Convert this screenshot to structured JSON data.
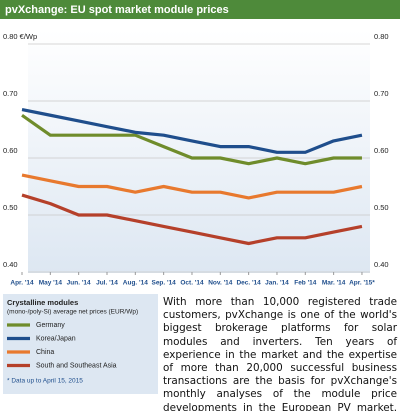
{
  "chart_data": {
    "type": "line",
    "title": "pvXchange: EU spot market module prices",
    "categories": [
      "Apr. '14",
      "May '14",
      "Jun. '14",
      "Jul. '14",
      "Aug. '14",
      "Sep. '14",
      "Oct. '14",
      "Nov. '14",
      "Dec. '14",
      "Jan. '14",
      "Feb '14",
      "Mar. '14",
      "Apr. '15*"
    ],
    "series": [
      {
        "name": "Germany",
        "color": "#6f8c2b",
        "values": [
          0.675,
          0.64,
          0.64,
          0.64,
          0.64,
          0.62,
          0.6,
          0.6,
          0.59,
          0.6,
          0.59,
          0.6,
          0.6
        ]
      },
      {
        "name": "Korea/Japan",
        "color": "#1f4e8c",
        "values": [
          0.685,
          0.675,
          0.665,
          0.655,
          0.645,
          0.64,
          0.63,
          0.62,
          0.62,
          0.61,
          0.61,
          0.63,
          0.64
        ]
      },
      {
        "name": "China",
        "color": "#e8792e",
        "values": [
          0.57,
          0.56,
          0.55,
          0.55,
          0.54,
          0.55,
          0.54,
          0.54,
          0.53,
          0.54,
          0.54,
          0.54,
          0.55
        ]
      },
      {
        "name": "South and Southeast Asia",
        "color": "#b5402a",
        "values": [
          0.535,
          0.52,
          0.5,
          0.5,
          0.49,
          0.48,
          0.47,
          0.46,
          0.45,
          0.46,
          0.46,
          0.47,
          0.48
        ]
      }
    ],
    "ylim": [
      0.4,
      0.8
    ],
    "yticks": [
      {
        "value": 0.8,
        "label": "0.80 €/Wp"
      },
      {
        "value": 0.7,
        "label": "0.70"
      },
      {
        "value": 0.6,
        "label": "0.60"
      },
      {
        "value": 0.5,
        "label": "0.50"
      },
      {
        "value": 0.4,
        "label": "0.40"
      }
    ],
    "y2lim": [
      0.4,
      0.8
    ],
    "y2ticks": [
      {
        "value": 0.8,
        "label": "0.80"
      },
      {
        "value": 0.7,
        "label": "0.70"
      },
      {
        "value": 0.6,
        "label": "0.60"
      },
      {
        "value": 0.5,
        "label": "0.50"
      },
      {
        "value": 0.4,
        "label": "0.40"
      }
    ],
    "grid": true,
    "legend_title": "Crystalline modules",
    "legend_subtitle": "(mono-/poly-Si) average net prices (EUR/Wp)",
    "footnote": "* Data up to April 15, 2015",
    "text": "With more than 10,000 registered trade customers, pvXchange is one of the world's biggest brokerage platforms for solar modules and inverters. Ten years of experience in the market and the expertise of more than 20,000 successful business transactions are the basis for pvXchange's monthly analyses of the module price developments in the European PV market. More information: www.pvXchange.com"
  }
}
